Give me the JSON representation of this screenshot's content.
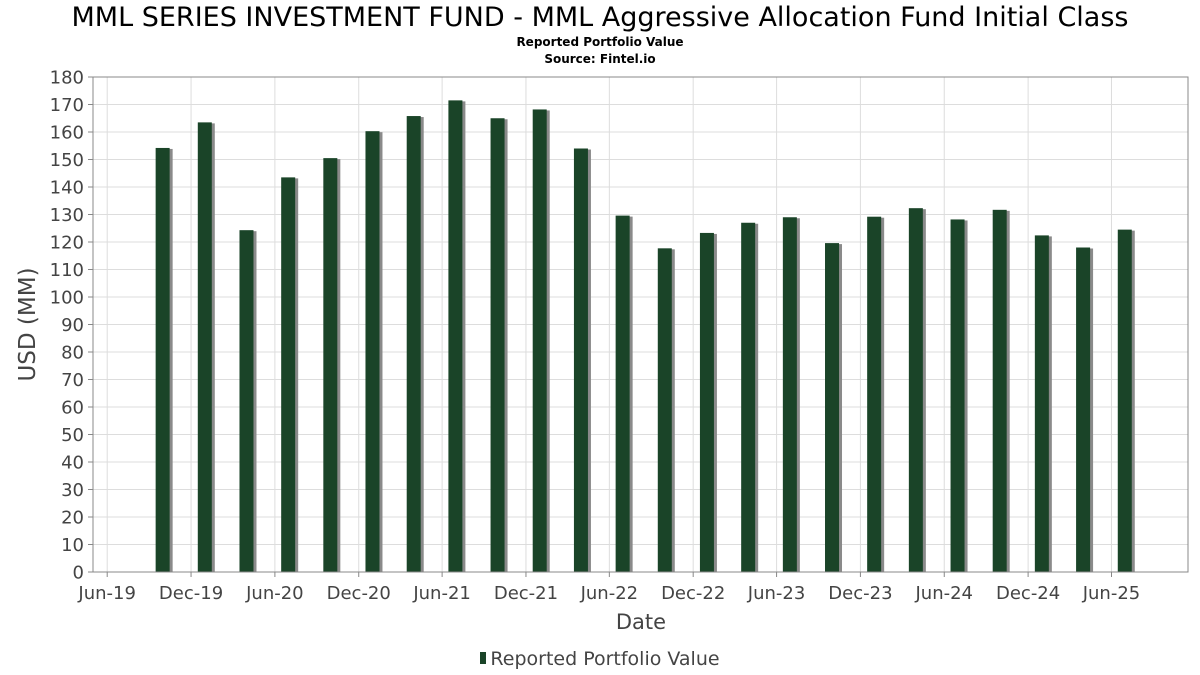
{
  "chart_data": {
    "type": "bar",
    "title": "MML SERIES INVESTMENT FUND - MML Aggressive Allocation Fund Initial Class",
    "subtitle": "Reported Portfolio Value",
    "source": "Source: Fintel.io",
    "xlabel": "Date",
    "ylabel": "USD (MM)",
    "ylim": [
      0,
      180
    ],
    "yticks": [
      0,
      10,
      20,
      30,
      40,
      50,
      60,
      70,
      80,
      90,
      100,
      110,
      120,
      130,
      140,
      150,
      160,
      170,
      180
    ],
    "xlim": [
      "2019-05-01",
      "2025-11-15"
    ],
    "xticks": [
      {
        "label": "Jun-19",
        "date": "2019-06-01"
      },
      {
        "label": "Dec-19",
        "date": "2019-12-01"
      },
      {
        "label": "Jun-20",
        "date": "2020-06-01"
      },
      {
        "label": "Dec-20",
        "date": "2020-12-01"
      },
      {
        "label": "Jun-21",
        "date": "2021-06-01"
      },
      {
        "label": "Dec-21",
        "date": "2021-12-01"
      },
      {
        "label": "Jun-22",
        "date": "2022-06-01"
      },
      {
        "label": "Dec-22",
        "date": "2022-12-01"
      },
      {
        "label": "Jun-23",
        "date": "2023-06-01"
      },
      {
        "label": "Dec-23",
        "date": "2023-12-01"
      },
      {
        "label": "Jun-24",
        "date": "2024-06-01"
      },
      {
        "label": "Dec-24",
        "date": "2024-12-01"
      },
      {
        "label": "Jun-25",
        "date": "2025-06-01"
      }
    ],
    "grid": true,
    "legend_position": "bottom-center",
    "colors": {
      "bar": "#1a4428",
      "shadow": "#8a8a8a",
      "grid": "#dddddd",
      "axis": "#888888"
    },
    "series": [
      {
        "name": "Reported Portfolio Value",
        "x": [
          "2019-09-30",
          "2019-12-31",
          "2020-03-31",
          "2020-06-30",
          "2020-09-30",
          "2020-12-31",
          "2021-03-31",
          "2021-06-30",
          "2021-09-30",
          "2021-12-31",
          "2022-03-31",
          "2022-06-30",
          "2022-09-30",
          "2022-12-31",
          "2023-03-31",
          "2023-06-30",
          "2023-09-30",
          "2023-12-31",
          "2024-03-31",
          "2024-06-30",
          "2024-09-30",
          "2024-12-31",
          "2025-03-31",
          "2025-06-30"
        ],
        "values": [
          154.2,
          163.5,
          124.3,
          143.5,
          150.5,
          160.3,
          165.8,
          171.5,
          165.0,
          168.2,
          154.0,
          129.6,
          117.7,
          123.3,
          127.0,
          129.0,
          119.6,
          129.2,
          132.3,
          128.2,
          131.7,
          122.4,
          118.0,
          124.5
        ]
      }
    ]
  }
}
